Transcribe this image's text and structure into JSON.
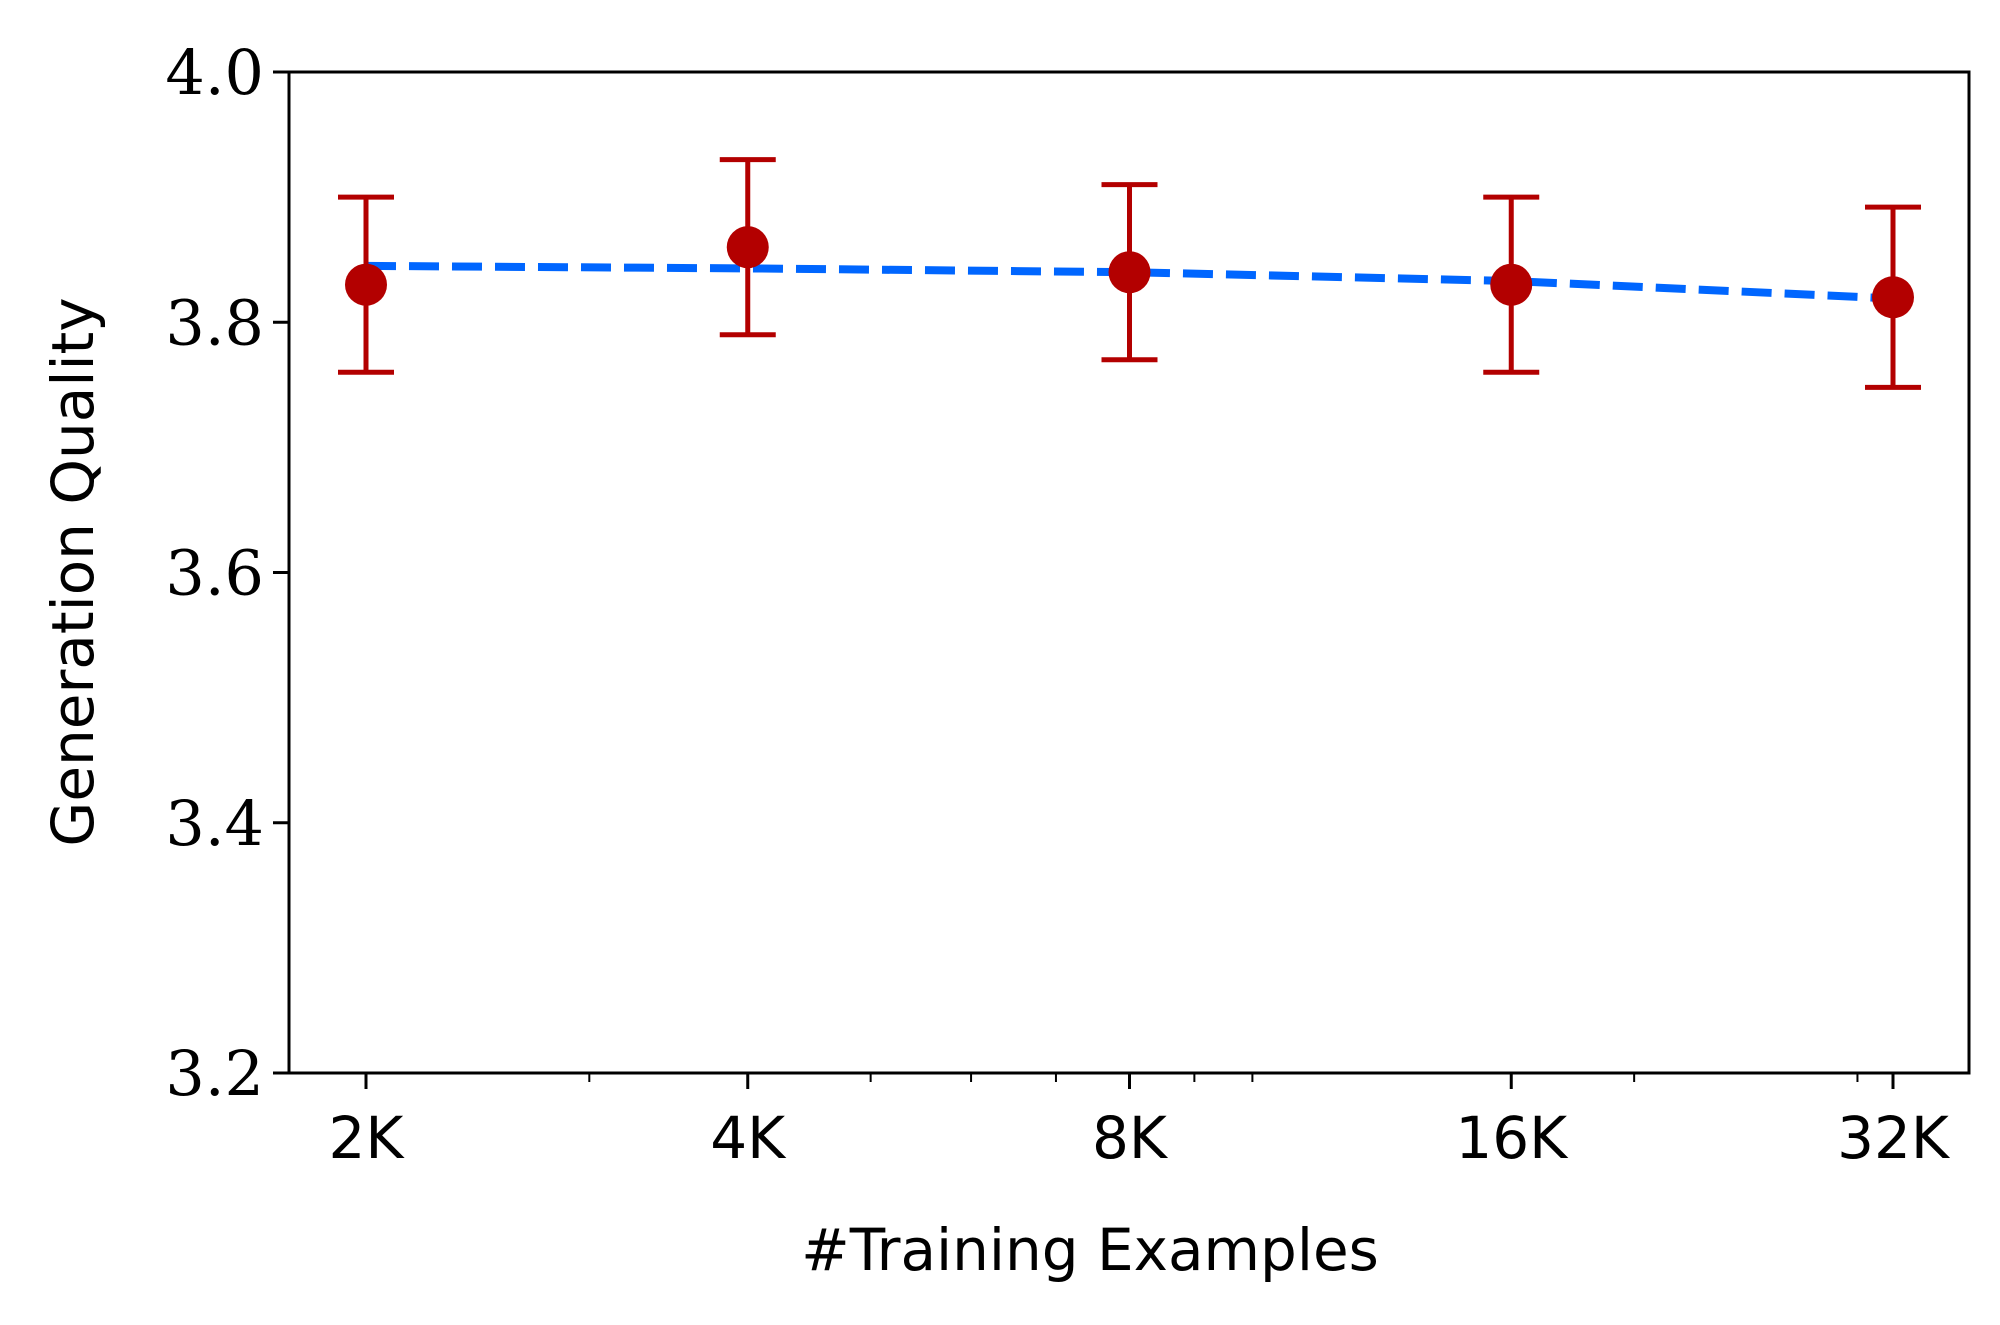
{
  "chart_data": {
    "type": "line",
    "title": "",
    "xlabel": "#Training Examples",
    "ylabel": "Generation Quality",
    "x_scale": "log2",
    "categories": [
      "2K",
      "4K",
      "8K",
      "16K",
      "32K"
    ],
    "x": [
      2000,
      4000,
      8000,
      16000,
      32000
    ],
    "ylim": [
      3.2,
      4.0
    ],
    "yticks": [
      "3.2",
      "3.4",
      "3.6",
      "3.8",
      "4.0"
    ],
    "yticks_values": [
      3.2,
      3.4,
      3.6,
      3.8,
      4.0
    ],
    "grid": false,
    "legend": "none",
    "series": [
      {
        "values": [
          3.83,
          3.86,
          3.84,
          3.83,
          3.82
        ],
        "error_lower": [
          3.76,
          3.79,
          3.77,
          3.76,
          3.748
        ],
        "error_upper": [
          3.9,
          3.93,
          3.91,
          3.9,
          3.892
        ],
        "color": "#b30000"
      }
    ],
    "trend": {
      "values": [
        3.845,
        3.843,
        3.84,
        3.833,
        3.819
      ],
      "style": "dashed",
      "color": "#0066ff"
    }
  }
}
